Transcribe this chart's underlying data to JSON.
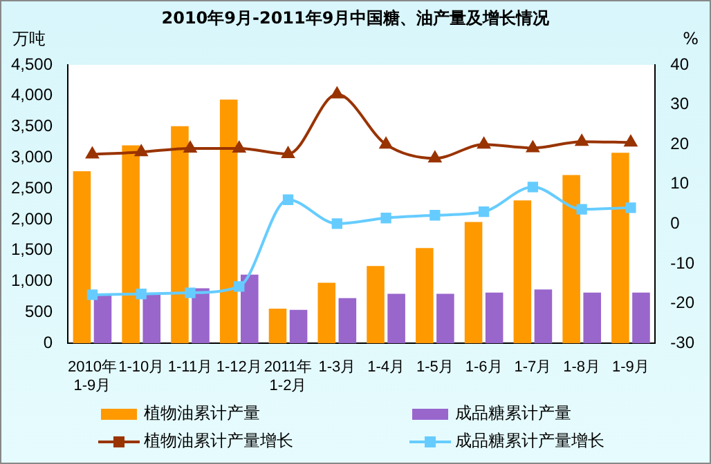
{
  "chart_data": {
    "type": "bar",
    "title": "2010年9月-2011年9月中国糖、油产量及增长情况",
    "ylabel": "万吨",
    "y2label": "%",
    "categories": [
      "2010年1-9月",
      "1-10月",
      "1-11月",
      "1-12月",
      "2011年1-2月",
      "1-3月",
      "1-4月",
      "1-5月",
      "1-6月",
      "1-7月",
      "1-8月",
      "1-9月"
    ],
    "series": [
      {
        "name": "植物油累计产量",
        "color": "#ff9900",
        "values": [
          2780,
          3200,
          3510,
          3940,
          560,
          980,
          1250,
          1540,
          1960,
          2310,
          2720,
          3080
        ]
      },
      {
        "name": "成品糖累计产量",
        "color": "#9966cc",
        "values": [
          780,
          800,
          890,
          1110,
          540,
          730,
          800,
          800,
          820,
          870,
          820,
          820
        ]
      },
      {
        "name": "植物油累计产量增长",
        "type": "line",
        "axis": "y2",
        "color": "#993300",
        "marker": "triangle",
        "values": [
          17.5,
          18.1,
          19,
          19,
          17.6,
          32.6,
          20,
          16.5,
          20,
          19.1,
          20.7,
          20.5
        ]
      },
      {
        "name": "成品糖累计产量增长",
        "type": "line",
        "axis": "y2",
        "color": "#66ccff",
        "marker": "square",
        "values": [
          -17.8,
          -17.6,
          -17.3,
          -15.7,
          6.1,
          0.1,
          1.5,
          2.2,
          3.1,
          9.3,
          3.7,
          4.1
        ]
      }
    ],
    "ylim": [
      0,
      4500
    ],
    "yticks": [
      0,
      500,
      {
        "value": 1000,
        "label": "1,000"
      },
      {
        "value": 1500,
        "label": "1,500"
      },
      {
        "value": 2000,
        "label": "2,000"
      },
      {
        "value": 2500,
        "label": "2,500"
      },
      {
        "value": 3000,
        "label": "3,000"
      },
      {
        "value": 3500,
        "label": "3,500"
      },
      {
        "value": 4000,
        "label": "4,000"
      },
      {
        "value": 4500,
        "label": "4,500"
      }
    ],
    "y2lim": [
      -30,
      40
    ],
    "y2ticks": [
      -30,
      -20,
      -10,
      0,
      10,
      20,
      30,
      40
    ],
    "legend": "bottom",
    "grid": false
  }
}
